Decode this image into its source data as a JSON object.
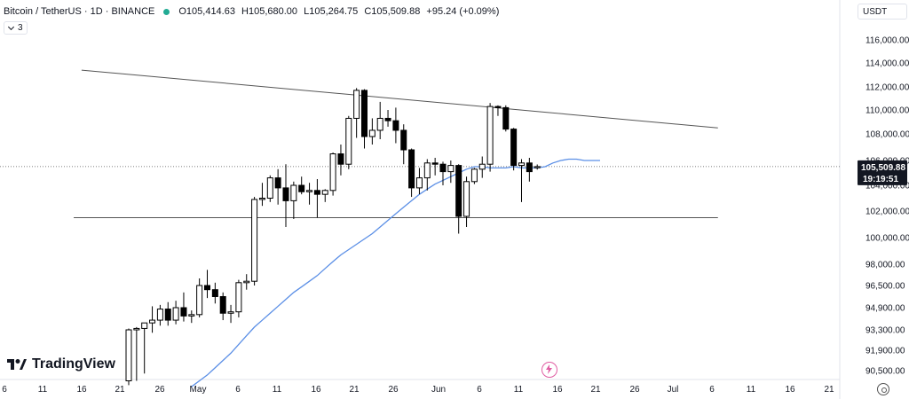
{
  "header": {
    "symbol": "Bitcoin / TetherUS · 1D · BINANCE",
    "open": "O105,414.63",
    "high": "H105,680.00",
    "low": "L105,264.75",
    "close": "C105,509.88",
    "change": "+95.24 (+0.09%)",
    "indicator_count": "3"
  },
  "currency_button": "USDT",
  "logo_text": "TradingView",
  "price_label": {
    "price": "105,509.88",
    "countdown": "19:19:51"
  },
  "colors": {
    "candle_up": "#ffffff",
    "candle_down": "#000000",
    "candle_outline": "#000000",
    "ma_line": "#5b8fe6",
    "trendline": "#555555",
    "price_label_bg": "#131722",
    "live_dot": "#22ab94"
  },
  "chart_data": {
    "type": "candlestick",
    "y_axis": {
      "ticks": [
        "116,000.00",
        "114,000.00",
        "112,000.00",
        "110,000.00",
        "108,000.00",
        "106,000.00",
        "104,000.00",
        "102,000.00",
        "100,000.00",
        "98,000.00",
        "96,500.00",
        "94,900.00",
        "93,300.00",
        "91,900.00",
        "90,500.00"
      ]
    },
    "x_axis": {
      "ticks": [
        "6",
        "11",
        "16",
        "21",
        "26",
        "May",
        "6",
        "11",
        "16",
        "21",
        "26",
        "Jun",
        "6",
        "11",
        "16",
        "21",
        "26",
        "Jul",
        "6",
        "11",
        "16",
        "21"
      ]
    },
    "candles": [
      {
        "o": 89800,
        "h": 93400,
        "l": 89500,
        "c": 93300
      },
      {
        "o": 93300,
        "h": 93500,
        "l": 89800,
        "c": 93400
      },
      {
        "o": 93400,
        "h": 93600,
        "l": 90300,
        "c": 93800
      },
      {
        "o": 93800,
        "h": 95000,
        "l": 93100,
        "c": 94000
      },
      {
        "o": 94000,
        "h": 95100,
        "l": 93600,
        "c": 94800
      },
      {
        "o": 94800,
        "h": 95300,
        "l": 93600,
        "c": 94000
      },
      {
        "o": 94000,
        "h": 95400,
        "l": 93700,
        "c": 94900
      },
      {
        "o": 94900,
        "h": 96000,
        "l": 93900,
        "c": 94300
      },
      {
        "o": 94300,
        "h": 94700,
        "l": 93800,
        "c": 94400
      },
      {
        "o": 94400,
        "h": 97000,
        "l": 94200,
        "c": 96500
      },
      {
        "o": 96500,
        "h": 97600,
        "l": 95600,
        "c": 96200
      },
      {
        "o": 96200,
        "h": 96700,
        "l": 95200,
        "c": 95700
      },
      {
        "o": 95700,
        "h": 96000,
        "l": 94000,
        "c": 94500
      },
      {
        "o": 94500,
        "h": 95100,
        "l": 93800,
        "c": 94600
      },
      {
        "o": 94600,
        "h": 96900,
        "l": 94200,
        "c": 96700
      },
      {
        "o": 96700,
        "h": 97300,
        "l": 96200,
        "c": 96800
      },
      {
        "o": 96800,
        "h": 103100,
        "l": 96500,
        "c": 102900
      },
      {
        "o": 102900,
        "h": 104200,
        "l": 102400,
        "c": 103000
      },
      {
        "o": 103000,
        "h": 104800,
        "l": 102700,
        "c": 104600
      },
      {
        "o": 104600,
        "h": 105300,
        "l": 102500,
        "c": 103800
      },
      {
        "o": 103800,
        "h": 105700,
        "l": 100800,
        "c": 102800
      },
      {
        "o": 102800,
        "h": 104300,
        "l": 101400,
        "c": 104000
      },
      {
        "o": 104000,
        "h": 104700,
        "l": 103300,
        "c": 103500
      },
      {
        "o": 103500,
        "h": 104200,
        "l": 102500,
        "c": 103600
      },
      {
        "o": 103600,
        "h": 104500,
        "l": 101500,
        "c": 103300
      },
      {
        "o": 103300,
        "h": 103700,
        "l": 102700,
        "c": 103600
      },
      {
        "o": 103600,
        "h": 106600,
        "l": 103200,
        "c": 106500
      },
      {
        "o": 106500,
        "h": 107200,
        "l": 104800,
        "c": 105700
      },
      {
        "o": 105700,
        "h": 109500,
        "l": 105300,
        "c": 109300
      },
      {
        "o": 109300,
        "h": 111900,
        "l": 107700,
        "c": 111700
      },
      {
        "o": 111700,
        "h": 111800,
        "l": 106900,
        "c": 107800
      },
      {
        "o": 107800,
        "h": 109300,
        "l": 107200,
        "c": 108300
      },
      {
        "o": 108300,
        "h": 110700,
        "l": 107600,
        "c": 109300
      },
      {
        "o": 109300,
        "h": 110000,
        "l": 108600,
        "c": 109100
      },
      {
        "o": 109100,
        "h": 110200,
        "l": 107300,
        "c": 108300
      },
      {
        "o": 108300,
        "h": 108800,
        "l": 105700,
        "c": 106800
      },
      {
        "o": 106800,
        "h": 106900,
        "l": 103100,
        "c": 103800
      },
      {
        "o": 103800,
        "h": 105400,
        "l": 103300,
        "c": 104600
      },
      {
        "o": 104600,
        "h": 106100,
        "l": 103600,
        "c": 105800
      },
      {
        "o": 105800,
        "h": 106200,
        "l": 104800,
        "c": 105700
      },
      {
        "o": 105700,
        "h": 105900,
        "l": 104000,
        "c": 105100
      },
      {
        "o": 105100,
        "h": 106000,
        "l": 104200,
        "c": 105600
      },
      {
        "o": 105600,
        "h": 105700,
        "l": 100300,
        "c": 101600
      },
      {
        "o": 101600,
        "h": 104700,
        "l": 100800,
        "c": 104300
      },
      {
        "o": 104300,
        "h": 105400,
        "l": 104100,
        "c": 105300
      },
      {
        "o": 105300,
        "h": 106300,
        "l": 104600,
        "c": 105700
      },
      {
        "o": 105700,
        "h": 110600,
        "l": 105100,
        "c": 110300
      },
      {
        "o": 110300,
        "h": 110400,
        "l": 109500,
        "c": 110200
      },
      {
        "o": 110200,
        "h": 110400,
        "l": 108200,
        "c": 108400
      },
      {
        "o": 108400,
        "h": 108500,
        "l": 105200,
        "c": 105600
      },
      {
        "o": 105600,
        "h": 106100,
        "l": 102700,
        "c": 105800
      },
      {
        "o": 105800,
        "h": 106200,
        "l": 104300,
        "c": 105100
      },
      {
        "o": 105414.63,
        "h": 105680.0,
        "l": 105264.75,
        "c": 105509.88
      }
    ],
    "moving_average": [
      89400,
      89800,
      90200,
      90700,
      91200,
      91700,
      92300,
      92900,
      93500,
      94000,
      94500,
      95000,
      95500,
      96000,
      96400,
      96800,
      97200,
      97700,
      98200,
      98700,
      99100,
      99500,
      99900,
      100300,
      100800,
      101300,
      101800,
      102300,
      102800,
      103300,
      103700,
      104100,
      104400,
      104700,
      105000,
      105300,
      105500,
      105500,
      105400,
      105400,
      105400,
      105500,
      105400,
      105400,
      105400,
      105500,
      105800,
      106000,
      106100,
      106100,
      106000,
      106000,
      106000
    ],
    "lines": [
      {
        "name": "descending trendline",
        "from": {
          "candle": -6,
          "price": 113400
        },
        "to": {
          "candle": 75,
          "price": 108500
        }
      },
      {
        "name": "support",
        "from": {
          "candle": -7,
          "price": 101500
        },
        "to": {
          "candle": 75,
          "price": 101500
        }
      }
    ],
    "current_price": 105509.88
  }
}
